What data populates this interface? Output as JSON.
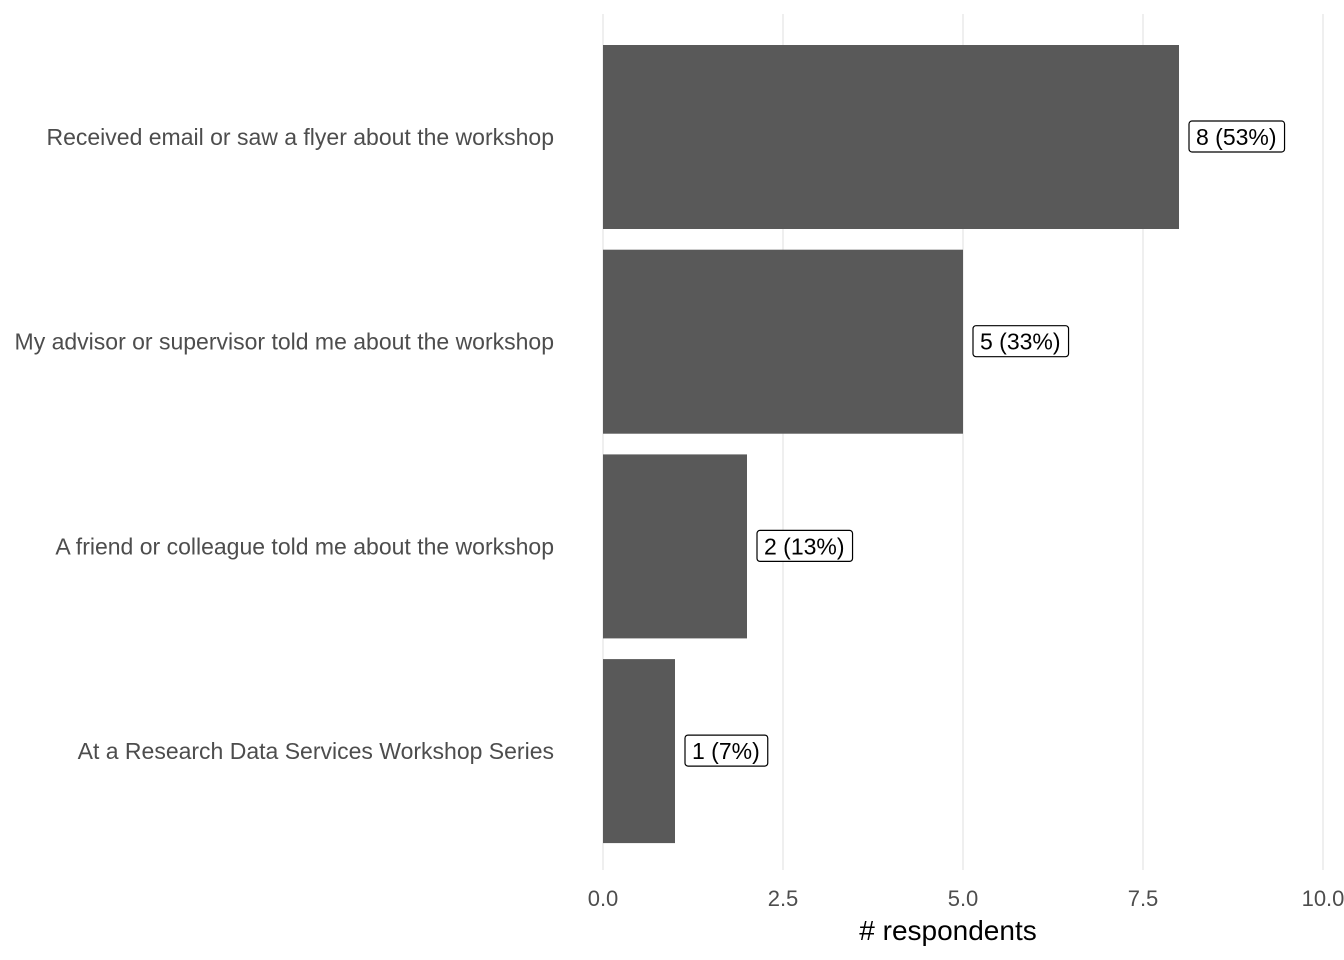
{
  "chart_data": {
    "type": "bar",
    "orientation": "horizontal",
    "categories": [
      "Received email or saw a flyer about the workshop",
      "My advisor or supervisor told me about the workshop",
      "A friend or colleague told me about the workshop",
      "At a Research Data Services Workshop Series"
    ],
    "values": [
      8,
      5,
      2,
      1
    ],
    "data_labels": [
      "8 (53%)",
      "5 (33%)",
      "2 (13%)",
      "1 (7%)"
    ],
    "xlabel": "# respondents",
    "ylabel": "",
    "xlim": [
      0,
      10
    ],
    "x_ticks": [
      0,
      2.5,
      5,
      7.5,
      10
    ],
    "x_tick_labels": [
      "0.0",
      "2.5",
      "5.0",
      "7.5",
      "10.0"
    ],
    "grid": "vertical",
    "legend": "none",
    "colors": {
      "bar": "#595959",
      "grid": "#ebebeb",
      "label_text": "#4d4d4d",
      "title_text": "#000000"
    }
  }
}
